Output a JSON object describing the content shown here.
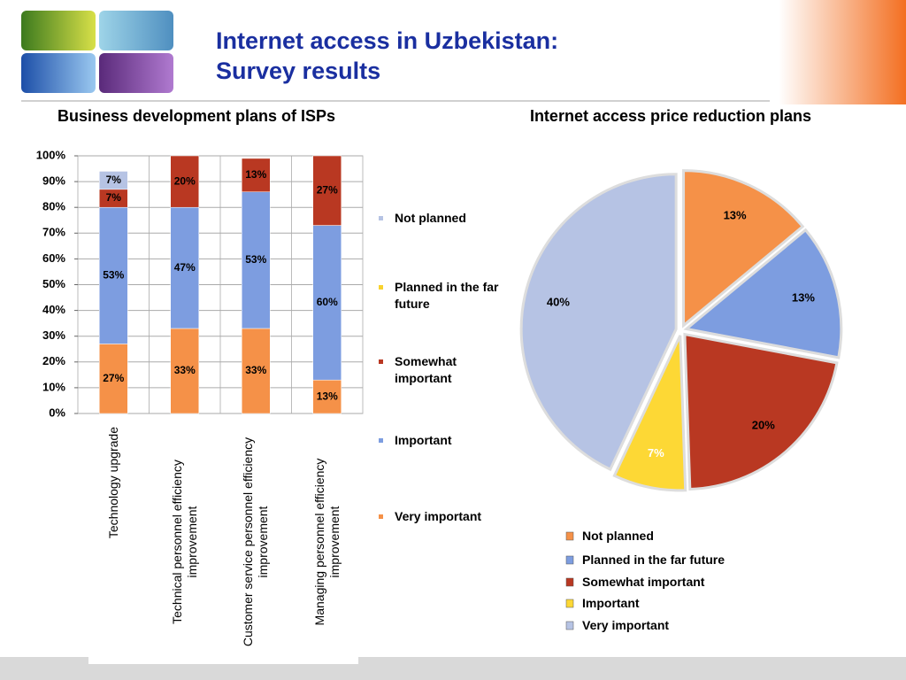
{
  "title": [
    "Internet access in Uzbekistan:",
    "Survey results"
  ],
  "chart_data": [
    {
      "type": "bar",
      "stacked": true,
      "title": "Business development plans of ISPs",
      "categories": [
        "Technology upgrade",
        "Technical personnel efficiency improvement",
        "Customer service personnel efficiency improvement",
        "Managing personnel efficiency improvement"
      ],
      "series": [
        {
          "name": "Very important",
          "color": "#f59148",
          "values": [
            27,
            33,
            33,
            13
          ],
          "value_labels": [
            "27%",
            "33%",
            "33%",
            "13%"
          ]
        },
        {
          "name": "Important",
          "color": "#7d9de0",
          "values": [
            53,
            47,
            53,
            60
          ],
          "value_labels": [
            "53%",
            "47%",
            "53%",
            "60%"
          ]
        },
        {
          "name": "Somewhat important",
          "color": "#b93822",
          "values": [
            7,
            20,
            13,
            27
          ],
          "value_labels": [
            "7%",
            "20%",
            "13%",
            "27%"
          ]
        },
        {
          "name": "Planned in the far future",
          "color": "#f8d22e",
          "values": [
            0,
            0,
            0,
            0
          ],
          "value_labels": [
            null,
            null,
            null,
            null
          ]
        },
        {
          "name": "Not planned",
          "color": "#b6c3e4",
          "values": [
            7,
            0,
            0,
            0
          ],
          "value_labels": [
            "7%",
            null,
            null,
            null
          ]
        }
      ],
      "ylim": [
        0,
        100
      ],
      "yticks": [
        {
          "value": 0,
          "label": "0%"
        },
        {
          "value": 10,
          "label": "10%"
        },
        {
          "value": 20,
          "label": "20%"
        },
        {
          "value": 30,
          "label": "30%"
        },
        {
          "value": 40,
          "label": "40%"
        },
        {
          "value": 50,
          "label": "50%"
        },
        {
          "value": 60,
          "label": "60%"
        },
        {
          "value": 70,
          "label": "70%"
        },
        {
          "value": 80,
          "label": "80%"
        },
        {
          "value": 90,
          "label": "90%"
        },
        {
          "value": 100,
          "label": "100%"
        }
      ],
      "grid": true,
      "legend": "right"
    },
    {
      "type": "pie",
      "title": "Internet access price reduction plans",
      "categories": [
        "Not planned",
        "Planned in the far future",
        "Somewhat important",
        "Important",
        "Very important"
      ],
      "values": [
        13,
        13,
        20,
        7,
        40
      ],
      "value_labels": [
        "13%",
        "13%",
        "20%",
        "7%",
        "40%"
      ],
      "colors": [
        "#f59148",
        "#7d9de0",
        "#b93822",
        "#fdd835",
        "#b6c3e4"
      ],
      "legend": "bottom"
    }
  ]
}
